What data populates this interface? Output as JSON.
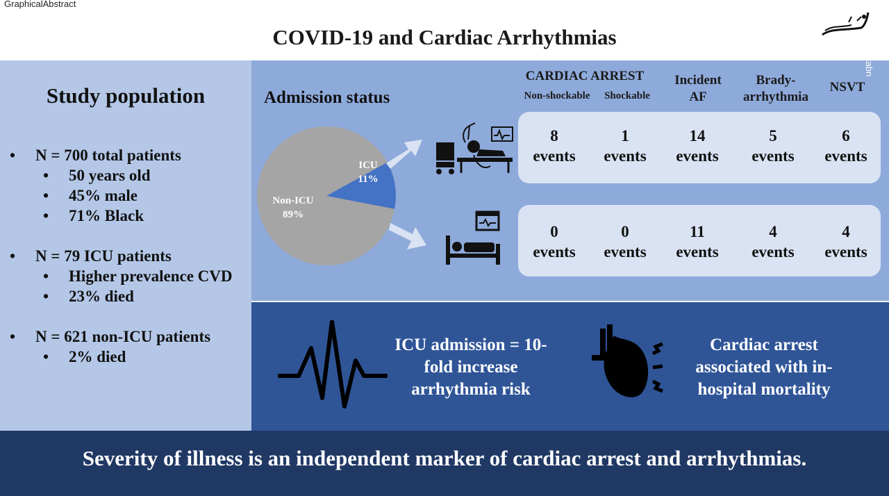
{
  "header": {
    "label": "GraphicalAbstract",
    "title": "COVID-19 and Cardiac Arrhythmias",
    "watermark": "tabn"
  },
  "study": {
    "title": "Study population",
    "groups": [
      {
        "main": "N = 700 total patients",
        "subs": [
          "50 years old",
          "45% male",
          "71% Black"
        ]
      },
      {
        "main": "N = 79 ICU patients",
        "subs": [
          "Higher prevalence CVD",
          "23% died"
        ]
      },
      {
        "main": "N = 621 non-ICU patients",
        "subs": [
          "2% died"
        ]
      }
    ]
  },
  "admission": {
    "title": "Admission status",
    "cardiac_arrest_header": "CARDIAC ARREST",
    "columns": [
      "Non-shockable",
      "Shockable",
      "Incident AF",
      "Brady- arrhythmia",
      "NSVT"
    ],
    "rows": [
      {
        "group": "ICU",
        "cells": [
          {
            "count": "8",
            "unit": "events"
          },
          {
            "count": "1",
            "unit": "events"
          },
          {
            "count": "14",
            "unit": "events"
          },
          {
            "count": "5",
            "unit": "events"
          },
          {
            "count": "6",
            "unit": "events"
          }
        ]
      },
      {
        "group": "Non-ICU",
        "cells": [
          {
            "count": "0",
            "unit": "events"
          },
          {
            "count": "0",
            "unit": "events"
          },
          {
            "count": "11",
            "unit": "events"
          },
          {
            "count": "4",
            "unit": "events"
          },
          {
            "count": "4",
            "unit": "events"
          }
        ]
      }
    ]
  },
  "pie": {
    "slices": [
      {
        "label": "ICU",
        "pct_label": "11%",
        "value": 11,
        "color": "#4472c4"
      },
      {
        "label": "Non-ICU",
        "pct_label": "89%",
        "value": 89,
        "color": "#a5a5a5"
      }
    ]
  },
  "findings": {
    "icu_risk": "ICU admission = 10-fold increase arrhythmia risk",
    "mortality": "Cardiac arrest associated with in-hospital mortality"
  },
  "conclusion": "Severity of illness is an independent marker of cardiac arrest and arrhythmias.",
  "colors": {
    "left_panel": "#b4c7e7",
    "admission_panel": "#8eaadb",
    "findings_panel": "#2f5597",
    "conclusion_panel": "#203864",
    "row_box": "#dae3f3"
  },
  "icons": [
    "icu-bed-monitor-icon",
    "hospital-bed-icon",
    "ecg-waveform-icon",
    "heart-arrhythmia-icon",
    "arrow-right-icon"
  ]
}
